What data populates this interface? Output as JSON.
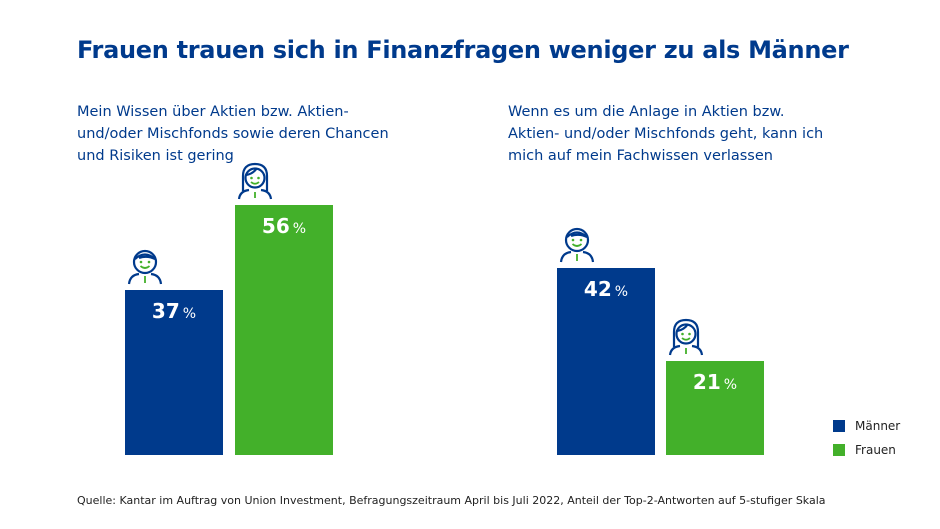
{
  "title": "Frauen trauen sich in Finanzfragen weniger zu als Männer",
  "colors": {
    "Männer": "#003a8c",
    "Frauen": "#43b02a"
  },
  "chart_data": [
    {
      "type": "bar",
      "title": "Mein Wissen über Aktien bzw. Aktien- und/oder Mischfonds sowie deren Chancen und Risiken ist gering",
      "categories": [
        "Männer",
        "Frauen"
      ],
      "values": [
        37,
        56
      ],
      "unit": "%",
      "ylim": [
        0,
        100
      ],
      "grid": false
    },
    {
      "type": "bar",
      "title": "Wenn es um die Anlage in Aktien bzw. Aktien- und/oder Mischfonds geht, kann ich mich auf mein Fachwissen verlassen",
      "categories": [
        "Männer",
        "Frauen"
      ],
      "values": [
        42,
        21
      ],
      "unit": "%",
      "ylim": [
        0,
        100
      ],
      "grid": false
    }
  ],
  "legend": {
    "placement": "bottom-right",
    "items": [
      "Männer",
      "Frauen"
    ]
  },
  "source": "Quelle: Kantar im Auftrag von Union Investment, Befragungszeitraum April bis Juli 2022, Anteil der Top-2-Antworten auf 5-stufiger Skala"
}
